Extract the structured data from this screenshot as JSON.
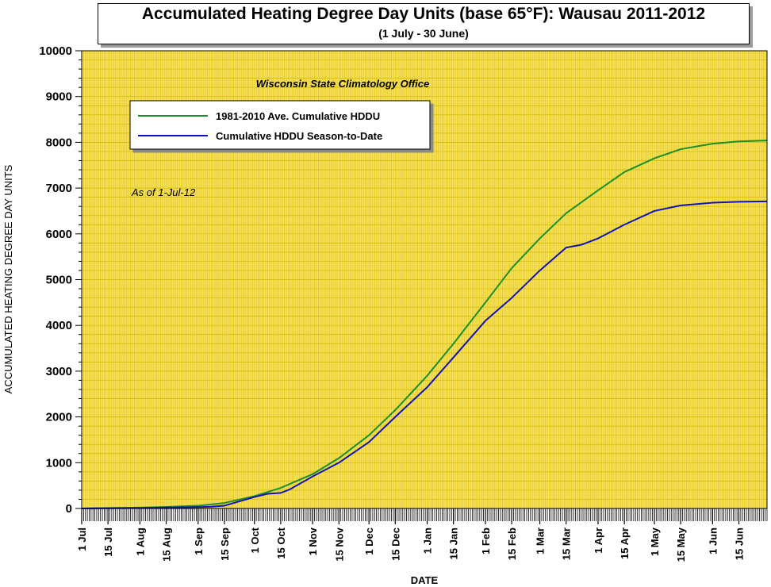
{
  "header": {
    "title": "Accumulated Heating Degree Day Units (base 65°F): Wausau 2011-2012",
    "subtitle": "(1 July - 30 June)"
  },
  "chart_data": {
    "type": "line",
    "title": "Accumulated Heating Degree Day Units (base 65°F): Wausau 2011-2012",
    "subtitle": "(1 July - 30 June)",
    "xlabel": "DATE",
    "ylabel": "ACCUMULATED HEATING DEGREE DAY UNITS",
    "source_note": "Wisconsin State Climatology Office",
    "as_of_note": "As of 1-Jul-12",
    "ylim": [
      0,
      10000
    ],
    "yticks": [
      0,
      1000,
      2000,
      3000,
      4000,
      5000,
      6000,
      7000,
      8000,
      9000,
      10000
    ],
    "xlim": [
      "2011-07-01",
      "2012-06-30"
    ],
    "xticks": [
      {
        "date": "2011-07-01",
        "label": "1 Jul"
      },
      {
        "date": "2011-07-15",
        "label": "15 Jul"
      },
      {
        "date": "2011-08-01",
        "label": "1 Aug"
      },
      {
        "date": "2011-08-15",
        "label": "15 Aug"
      },
      {
        "date": "2011-09-01",
        "label": "1 Sep"
      },
      {
        "date": "2011-09-15",
        "label": "15 Sep"
      },
      {
        "date": "2011-10-01",
        "label": "1 Oct"
      },
      {
        "date": "2011-10-15",
        "label": "15 Oct"
      },
      {
        "date": "2011-11-01",
        "label": "1 Nov"
      },
      {
        "date": "2011-11-15",
        "label": "15 Nov"
      },
      {
        "date": "2011-12-01",
        "label": "1 Dec"
      },
      {
        "date": "2011-12-15",
        "label": "15 Dec"
      },
      {
        "date": "2012-01-01",
        "label": "1 Jan"
      },
      {
        "date": "2012-01-15",
        "label": "15 Jan"
      },
      {
        "date": "2012-02-01",
        "label": "1 Feb"
      },
      {
        "date": "2012-02-15",
        "label": "15 Feb"
      },
      {
        "date": "2012-03-01",
        "label": "1 Mar"
      },
      {
        "date": "2012-03-15",
        "label": "15 Mar"
      },
      {
        "date": "2012-04-01",
        "label": "1 Apr"
      },
      {
        "date": "2012-04-15",
        "label": "15 Apr"
      },
      {
        "date": "2012-05-01",
        "label": "1 May"
      },
      {
        "date": "2012-05-15",
        "label": "15 May"
      },
      {
        "date": "2012-06-01",
        "label": "1 Jun"
      },
      {
        "date": "2012-06-15",
        "label": "15 Jun"
      }
    ],
    "grid": true,
    "legend_position": "top-left",
    "colors": {
      "plot_background": "#f7e15a",
      "grid": "#d4b800",
      "normal": "#1a8f2a",
      "season": "#1111bb"
    },
    "series": [
      {
        "name": "1981-2010 Ave. Cumulative HDDU",
        "color": "#1a8f2a",
        "points": [
          [
            "2011-07-01",
            0
          ],
          [
            "2011-07-15",
            10
          ],
          [
            "2011-08-01",
            20
          ],
          [
            "2011-08-15",
            35
          ],
          [
            "2011-09-01",
            60
          ],
          [
            "2011-09-15",
            120
          ],
          [
            "2011-10-01",
            270
          ],
          [
            "2011-10-15",
            450
          ],
          [
            "2011-11-01",
            750
          ],
          [
            "2011-11-15",
            1100
          ],
          [
            "2011-12-01",
            1600
          ],
          [
            "2011-12-15",
            2150
          ],
          [
            "2012-01-01",
            2900
          ],
          [
            "2012-01-15",
            3600
          ],
          [
            "2012-02-01",
            4500
          ],
          [
            "2012-02-15",
            5250
          ],
          [
            "2012-03-01",
            5900
          ],
          [
            "2012-03-15",
            6450
          ],
          [
            "2012-04-01",
            6950
          ],
          [
            "2012-04-15",
            7350
          ],
          [
            "2012-05-01",
            7650
          ],
          [
            "2012-05-15",
            7850
          ],
          [
            "2012-06-01",
            7970
          ],
          [
            "2012-06-15",
            8020
          ],
          [
            "2012-06-30",
            8040
          ]
        ]
      },
      {
        "name": "Cumulative HDDU Season-to-Date",
        "color": "#1111bb",
        "points": [
          [
            "2011-07-01",
            0
          ],
          [
            "2011-07-15",
            5
          ],
          [
            "2011-08-01",
            10
          ],
          [
            "2011-08-15",
            20
          ],
          [
            "2011-09-01",
            30
          ],
          [
            "2011-09-08",
            40
          ],
          [
            "2011-09-15",
            60
          ],
          [
            "2011-09-20",
            120
          ],
          [
            "2011-10-01",
            250
          ],
          [
            "2011-10-08",
            320
          ],
          [
            "2011-10-15",
            340
          ],
          [
            "2011-10-20",
            420
          ],
          [
            "2011-11-01",
            700
          ],
          [
            "2011-11-15",
            1000
          ],
          [
            "2011-12-01",
            1450
          ],
          [
            "2011-12-15",
            2000
          ],
          [
            "2012-01-01",
            2650
          ],
          [
            "2012-01-15",
            3300
          ],
          [
            "2012-02-01",
            4100
          ],
          [
            "2012-02-15",
            4600
          ],
          [
            "2012-03-01",
            5200
          ],
          [
            "2012-03-15",
            5700
          ],
          [
            "2012-03-23",
            5760
          ],
          [
            "2012-04-01",
            5900
          ],
          [
            "2012-04-15",
            6200
          ],
          [
            "2012-05-01",
            6500
          ],
          [
            "2012-05-15",
            6620
          ],
          [
            "2012-06-01",
            6680
          ],
          [
            "2012-06-15",
            6700
          ],
          [
            "2012-06-30",
            6710
          ]
        ]
      }
    ]
  }
}
